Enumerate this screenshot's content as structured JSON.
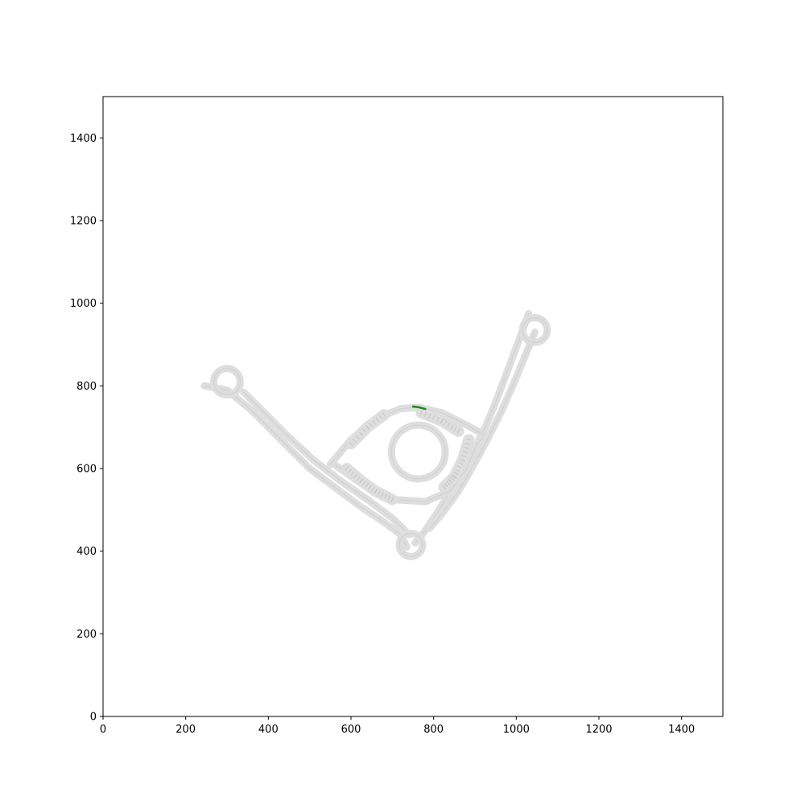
{
  "chart_data": {
    "type": "map",
    "title": "",
    "xlabel": "",
    "ylabel": "",
    "xlim": [
      0,
      1500
    ],
    "ylim": [
      0,
      1500
    ],
    "xticks": [
      0,
      200,
      400,
      600,
      800,
      1000,
      1200,
      1400
    ],
    "yticks": [
      0,
      200,
      400,
      600,
      800,
      1000,
      1200,
      1400
    ],
    "xtick_labels": [
      "0",
      "200",
      "400",
      "600",
      "800",
      "1000",
      "1200",
      "1400"
    ],
    "ytick_labels": [
      "0",
      "200",
      "400",
      "600",
      "800",
      "1000",
      "1200",
      "1400"
    ],
    "grid": false,
    "road_color": "#dedede",
    "highlight_color": "#1a8c1a",
    "roads": [
      {
        "name": "west-arm-outer",
        "points": [
          [
            245,
            800
          ],
          [
            300,
            790
          ],
          [
            360,
            740
          ],
          [
            430,
            670
          ],
          [
            500,
            600
          ],
          [
            560,
            555
          ],
          [
            620,
            510
          ],
          [
            680,
            470
          ],
          [
            720,
            440
          ],
          [
            735,
            410
          ]
        ]
      },
      {
        "name": "west-arm-inner",
        "points": [
          [
            340,
            785
          ],
          [
            380,
            745
          ],
          [
            440,
            685
          ],
          [
            510,
            620
          ],
          [
            575,
            570
          ],
          [
            640,
            525
          ],
          [
            700,
            480
          ],
          [
            740,
            440
          ]
        ]
      },
      {
        "name": "east-arm-outer",
        "points": [
          [
            1030,
            975
          ],
          [
            1010,
            920
          ],
          [
            980,
            840
          ],
          [
            950,
            760
          ],
          [
            925,
            700
          ],
          [
            890,
            630
          ],
          [
            850,
            560
          ],
          [
            810,
            495
          ],
          [
            780,
            450
          ],
          [
            755,
            420
          ]
        ]
      },
      {
        "name": "east-arm-inner",
        "points": [
          [
            1045,
            930
          ],
          [
            1000,
            820
          ],
          [
            965,
            740
          ],
          [
            930,
            670
          ],
          [
            895,
            605
          ],
          [
            860,
            545
          ],
          [
            820,
            490
          ],
          [
            790,
            455
          ]
        ]
      },
      {
        "name": "access-road",
        "points": [
          [
            560,
            610
          ],
          [
            630,
            560
          ],
          [
            700,
            525
          ],
          [
            780,
            520
          ],
          [
            840,
            545
          ],
          [
            880,
            600
          ],
          [
            905,
            660
          ],
          [
            925,
            680
          ]
        ]
      },
      {
        "name": "outer-ring-road",
        "points": [
          [
            550,
            610
          ],
          [
            600,
            670
          ],
          [
            660,
            720
          ],
          [
            720,
            745
          ],
          [
            765,
            748
          ],
          [
            820,
            735
          ],
          [
            880,
            705
          ],
          [
            925,
            680
          ]
        ]
      },
      {
        "name": "inner-ring",
        "points": [
          [
            763,
            640
          ]
        ],
        "radius": 65
      },
      {
        "name": "west-cul-de-sac",
        "points": [
          [
            300,
            810
          ]
        ],
        "radius": 32
      },
      {
        "name": "east-cul-de-sac",
        "points": [
          [
            1045,
            935
          ]
        ],
        "radius": 30
      },
      {
        "name": "south-cul-de-sac",
        "points": [
          [
            745,
            415
          ]
        ],
        "radius": 28
      }
    ],
    "parking_rows": [
      {
        "name": "nw-rows",
        "points": [
          [
            600,
            660
          ],
          [
            640,
            700
          ],
          [
            680,
            730
          ]
        ]
      },
      {
        "name": "w-rows",
        "points": [
          [
            590,
            600
          ],
          [
            625,
            570
          ],
          [
            660,
            545
          ],
          [
            700,
            525
          ]
        ]
      },
      {
        "name": "ne-rows",
        "points": [
          [
            770,
            735
          ],
          [
            820,
            715
          ],
          [
            860,
            690
          ]
        ]
      },
      {
        "name": "e-rows",
        "points": [
          [
            885,
            670
          ],
          [
            870,
            620
          ],
          [
            850,
            580
          ],
          [
            825,
            555
          ]
        ]
      }
    ],
    "highlight_segment": {
      "name": "highlighted-lane",
      "points": [
        [
          750,
          750
        ],
        [
          765,
          748
        ],
        [
          780,
          744
        ]
      ]
    }
  }
}
